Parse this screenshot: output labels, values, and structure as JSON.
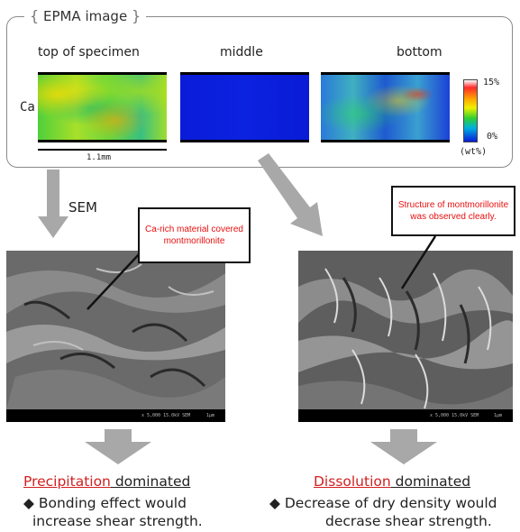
{
  "epma": {
    "title": "EPMA image",
    "bracket_left": "{",
    "bracket_right": "}",
    "columns": [
      "top of specimen",
      "middle",
      "bottom"
    ],
    "element": "Ca",
    "scale": "1.1mm",
    "colorbar": {
      "max": "15%",
      "min": "0%",
      "unit": "(wt%)"
    }
  },
  "sem": {
    "label": "SEM"
  },
  "callouts": {
    "left": "Ca-rich material covered montmorillonite",
    "right": "Structure of montmorillonite was observed clearly."
  },
  "sem_bar_text": {
    "left": "x 5,000   15.0kV SEM",
    "right": "x 5,000   15.0kV SEM",
    "scale": "1μm"
  },
  "results": {
    "left": {
      "keyword": "Precipitation",
      "rest": " dominated",
      "bullet": "◆",
      "line1": "Bonding effect would",
      "line2": "increase shear strength."
    },
    "right": {
      "keyword": "Dissolution",
      "rest": " dominated",
      "bullet": "◆",
      "line1": "Decrease of dry density would",
      "line2": "decrase shear strength."
    }
  },
  "colors": {
    "accent_red": "#d22020",
    "arrow_gray": "#a8a8a8"
  }
}
